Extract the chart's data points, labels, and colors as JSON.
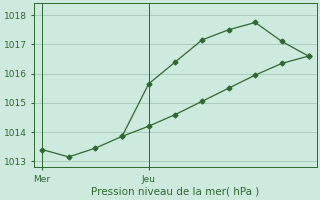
{
  "line1_x": [
    0,
    1,
    2,
    3,
    4,
    5,
    6,
    7,
    8,
    9,
    10
  ],
  "line1_y": [
    1013.4,
    1013.15,
    1013.45,
    1013.85,
    1015.65,
    1016.4,
    1017.15,
    1017.5,
    1017.75,
    1017.1,
    1016.6
  ],
  "line2_x": [
    3,
    4,
    5,
    6,
    7,
    8,
    9,
    10
  ],
  "line2_y": [
    1013.85,
    1014.2,
    1014.6,
    1015.05,
    1015.5,
    1015.95,
    1016.35,
    1016.6
  ],
  "ylim": [
    1012.8,
    1018.4
  ],
  "xlim": [
    -0.3,
    10.3
  ],
  "yticks": [
    1013,
    1014,
    1015,
    1016,
    1017,
    1018
  ],
  "mer_x": 0,
  "jeu_x": 4.0,
  "xlabel": "Pression niveau de la mer( hPa )",
  "line_color": "#2d6a2d",
  "bg_color": "#ceeade",
  "grid_color": "#a8ccbc",
  "ylabel_fontsize": 6.5,
  "xlabel_fontsize": 7.5
}
